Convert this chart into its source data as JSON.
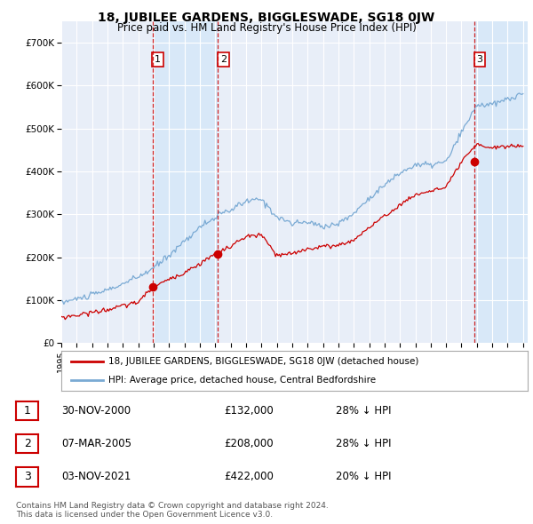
{
  "title": "18, JUBILEE GARDENS, BIGGLESWADE, SG18 0JW",
  "subtitle": "Price paid vs. HM Land Registry's House Price Index (HPI)",
  "xlim_start": 1995.0,
  "xlim_end": 2025.3,
  "ylim": [
    0,
    750000
  ],
  "yticks": [
    0,
    100000,
    200000,
    300000,
    400000,
    500000,
    600000,
    700000
  ],
  "ytick_labels": [
    "£0",
    "£100K",
    "£200K",
    "£300K",
    "£400K",
    "£500K",
    "£600K",
    "£700K"
  ],
  "background_color": "#ffffff",
  "plot_bg_color": "#e8eef8",
  "grid_color": "#ffffff",
  "hpi_color": "#7aaad4",
  "price_color": "#cc0000",
  "shade_color": "#d8e8f8",
  "sale_marker_color": "#cc0000",
  "sale1_x": 2000.917,
  "sale1_y": 132000,
  "sale1_label": "1",
  "sale2_x": 2005.18,
  "sale2_y": 208000,
  "sale2_label": "2",
  "sale3_x": 2021.84,
  "sale3_y": 422000,
  "sale3_label": "3",
  "legend_house_label": "18, JUBILEE GARDENS, BIGGLESWADE, SG18 0JW (detached house)",
  "legend_hpi_label": "HPI: Average price, detached house, Central Bedfordshire",
  "table_rows": [
    {
      "num": "1",
      "date": "30-NOV-2000",
      "price": "£132,000",
      "hpi": "28% ↓ HPI"
    },
    {
      "num": "2",
      "date": "07-MAR-2005",
      "price": "£208,000",
      "hpi": "28% ↓ HPI"
    },
    {
      "num": "3",
      "date": "03-NOV-2021",
      "price": "£422,000",
      "hpi": "20% ↓ HPI"
    }
  ],
  "footer": "Contains HM Land Registry data © Crown copyright and database right 2024.\nThis data is licensed under the Open Government Licence v3.0.",
  "xtick_years": [
    1995,
    1996,
    1997,
    1998,
    1999,
    2000,
    2001,
    2002,
    2003,
    2004,
    2005,
    2006,
    2007,
    2008,
    2009,
    2010,
    2011,
    2012,
    2013,
    2014,
    2015,
    2016,
    2017,
    2018,
    2019,
    2020,
    2021,
    2022,
    2023,
    2024,
    2025
  ],
  "hpi_base": [
    95000,
    103000,
    112000,
    124000,
    138000,
    154000,
    175000,
    205000,
    238000,
    270000,
    293000,
    310000,
    330000,
    335000,
    295000,
    278000,
    282000,
    272000,
    278000,
    302000,
    338000,
    368000,
    396000,
    415000,
    415000,
    422000,
    490000,
    555000,
    555000,
    568000,
    580000
  ],
  "price_base": [
    60000,
    65000,
    72000,
    78000,
    87000,
    96000,
    132000,
    148000,
    165000,
    185000,
    208000,
    225000,
    248000,
    252000,
    204000,
    208000,
    220000,
    225000,
    228000,
    240000,
    270000,
    295000,
    322000,
    345000,
    355000,
    362000,
    422000,
    462000,
    455000,
    458000,
    460000
  ],
  "hpi_noise_seed": 10,
  "price_noise_seed": 20
}
